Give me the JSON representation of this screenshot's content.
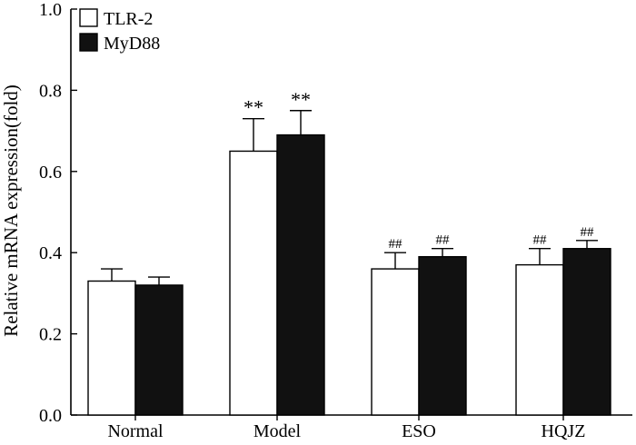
{
  "chart_data": {
    "type": "bar",
    "title": "",
    "xlabel": "",
    "ylabel": "Relative mRNA expression(fold)",
    "ylim": [
      0,
      1.0
    ],
    "yticks": [
      0.0,
      0.2,
      0.4,
      0.6,
      0.8,
      1.0
    ],
    "ytick_labels": [
      "0.0",
      "0.2",
      "0.4",
      "0.6",
      "0.8",
      "1.0"
    ],
    "grid": false,
    "legend_position": "top-left",
    "categories": [
      "Normal",
      "Model",
      "ESO",
      "HQJZ"
    ],
    "series": [
      {
        "name": "TLR-2",
        "fill": "#ffffff",
        "values": [
          0.33,
          0.65,
          0.36,
          0.37
        ],
        "errors": [
          0.03,
          0.08,
          0.04,
          0.04
        ],
        "annotations": [
          "",
          "**",
          "##",
          "##"
        ]
      },
      {
        "name": "MyD88",
        "fill": "#111111",
        "values": [
          0.32,
          0.69,
          0.39,
          0.41
        ],
        "errors": [
          0.02,
          0.06,
          0.02,
          0.02
        ],
        "annotations": [
          "",
          "**",
          "##",
          "##"
        ]
      }
    ]
  }
}
